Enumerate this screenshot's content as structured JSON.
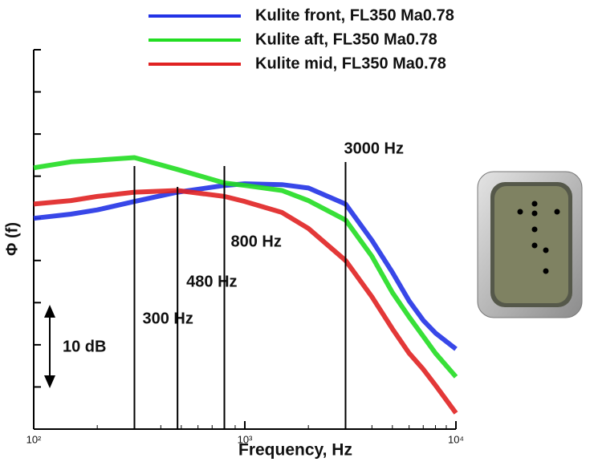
{
  "chart_data": {
    "type": "line",
    "x_label": "Frequency, Hz",
    "y_label": "Φ (f)",
    "xscale": "log",
    "xlim": [
      100,
      10000
    ],
    "xticks": [
      {
        "value": 100,
        "label": "10²"
      },
      {
        "value": 1000,
        "label": "10³"
      },
      {
        "value": 10000,
        "label": "10⁴"
      }
    ],
    "ylim": [
      0,
      45
    ],
    "yticks": [
      0,
      5,
      10,
      15,
      20,
      25,
      30,
      35,
      40,
      45
    ],
    "x": [
      100,
      150,
      200,
      300,
      480,
      800,
      1000,
      1500,
      2000,
      3000,
      4000,
      5000,
      6000,
      7000,
      8000,
      10000
    ],
    "series": [
      {
        "name": "Kulite front, FL350 Ma0.78",
        "color": "#2233e6",
        "values": [
          25.0,
          25.5,
          26.0,
          27.0,
          28.1,
          28.9,
          29.1,
          29.0,
          28.6,
          26.7,
          22.4,
          18.6,
          15.2,
          12.9,
          11.4,
          9.5
        ]
      },
      {
        "name": "Kulite aft, FL350 Ma0.78",
        "color": "#22dd22",
        "values": [
          31.0,
          31.7,
          31.9,
          32.2,
          30.8,
          29.2,
          28.9,
          28.3,
          27.1,
          24.8,
          20.5,
          16.2,
          13.3,
          11.0,
          9.0,
          6.2
        ]
      },
      {
        "name": "Kulite mid, FL350 Ma0.78",
        "color": "#e02222",
        "values": [
          26.7,
          27.1,
          27.6,
          28.1,
          28.3,
          27.6,
          27.0,
          25.7,
          23.8,
          20.0,
          15.7,
          11.9,
          9.0,
          7.1,
          5.2,
          1.9
        ]
      }
    ],
    "annotations": [
      {
        "x": 300,
        "label": "300 Hz"
      },
      {
        "x": 480,
        "label": "480 Hz"
      },
      {
        "x": 800,
        "label": "800 Hz"
      },
      {
        "x": 3000,
        "label": "3000 Hz"
      }
    ],
    "scale_label": "10 dB"
  }
}
